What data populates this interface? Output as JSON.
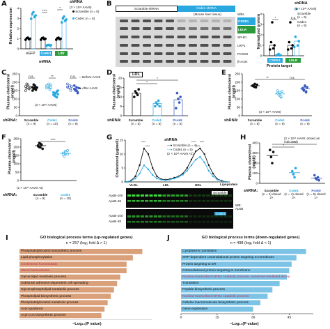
{
  "panels": {
    "A": {
      "label": "A",
      "title": "shRNA",
      "dose": "(3 × 10¹¹ AAV8)",
      "legend": [
        {
          "name": "Scramble",
          "n": "(n = 5)"
        },
        {
          "name": "Csde1",
          "n": "(n = 5)"
        }
      ],
      "ylabel": "Relative expression",
      "xlabel": "mRNA",
      "categories": [
        "eGFP",
        "Csde1",
        "Ldlr"
      ],
      "sig": [
        "****",
        "*"
      ],
      "yticks": [
        "0",
        "1",
        "2",
        "3",
        "4"
      ]
    },
    "B": {
      "label": "B",
      "header_left": "Scramble shRNA",
      "header_right": "Csde1 shRNA",
      "tissue": "(Mouse liver tissue)",
      "wb_label": "WBs",
      "bands": [
        "CSDE1",
        "LDLR",
        "SR-B1",
        "LRP1",
        "PCSK9",
        "β-Actin"
      ],
      "ylabel": "Normalized protein",
      "xlabel": "Protein target",
      "legend_title": "shRNA",
      "dose": "(3 × 10¹¹ AAV8)",
      "legend": [
        {
          "name": "Scramble",
          "n": "(n = 5)"
        },
        {
          "name": "Csde1",
          "n": "(n = 5)"
        }
      ],
      "sig": [
        "*",
        "n.s."
      ],
      "categories": [
        "CSDE1",
        "LDLR"
      ],
      "yticks": [
        "0",
        "1",
        "2",
        "3",
        "4"
      ]
    },
    "C": {
      "label": "C",
      "ylabel": "Plasma cholesterol (mg/dl)",
      "legend": [
        "Before AAV8",
        "After AAV8"
      ],
      "dose": "(3 × 10¹¹ AAV8)",
      "shrna_label": "shRNA:",
      "categories": [
        "Scramble",
        "Csde1",
        "Pcsk9"
      ],
      "n": [
        "(n = 9)",
        "(n = 10)",
        "(n = 9)"
      ],
      "sig": [
        "n.s.",
        "**",
        "n.s."
      ],
      "yticks": [
        "0",
        "50",
        "100",
        "150",
        "200",
        "250"
      ]
    },
    "D": {
      "label": "D",
      "box": "LDL",
      "ylabel": "Plasma cholesterol (mg/dl)",
      "shrna_label": "shRNA:",
      "categories": [
        "Scramble",
        "Csde1",
        "Pcsk9"
      ],
      "n": [
        "(n = 5)",
        "(n = 5)",
        "(n = 5)"
      ],
      "sig": [
        "*",
        "*"
      ],
      "yticks": [
        "0",
        "5",
        "10",
        "15",
        "20"
      ]
    },
    "E": {
      "label": "E",
      "ylabel": "Plasma cholesterol (mg/dl)",
      "dose": "(3 × 10¹¹ AAV8)",
      "shrna_label": "shRNA:",
      "categories": [
        "Scramble",
        "Csde1",
        "Pcsk9"
      ],
      "n": [
        "(n = 8)",
        "(n = 9)",
        "(n = 9)"
      ],
      "sig": [
        "**",
        "n.s."
      ],
      "yticks": [
        "0",
        "50",
        "100",
        "150",
        "200",
        "250"
      ]
    },
    "F": {
      "label": "F",
      "ylabel": "Plasma cholesterol (mg/dl)",
      "dose": "(2 × 10¹¹ AAV8 ×2)",
      "shrna_label": "shRNA:",
      "categories": [
        "Scramble",
        "Csde1"
      ],
      "n": [
        "(n = 9)",
        "(n = 10)"
      ],
      "sig": [
        "****"
      ],
      "yticks": [
        "0",
        "50",
        "100",
        "150",
        "200",
        "250"
      ]
    },
    "G": {
      "label": "G",
      "title": "shRNA",
      "legend": [
        {
          "name": "Scramble",
          "n": "(n = 4)"
        },
        {
          "name": "Csde1",
          "n": "(n = 5)"
        }
      ],
      "dose": "(2 × 10¹¹ AAV8 ×2)",
      "ylabel": "Cholesterol (µg/well)",
      "xlabel": "Lipoprotein",
      "fractions": [
        "VLDL",
        "LDL",
        "HDL"
      ],
      "sig": [
        "****",
        "****",
        "****",
        "****",
        "****"
      ],
      "yticks": [
        "0",
        "5",
        "10",
        "15"
      ],
      "blot_labels": [
        "ApoB-100",
        "ApoB-48",
        "ApoB-100",
        "ApoB-48"
      ],
      "blot_tags": [
        "Scramble",
        "Csde1"
      ],
      "wb_label": "WB: ApoB"
    },
    "H": {
      "label": "H",
      "ylabel": "Plasma cholesterol (mg/dl)",
      "dose": "(2 × 10¹¹ AAV8; dosed as indicated)",
      "shrna_label": "shRNA:",
      "categories": [
        "Scramble",
        "Csde1",
        "Pcsk9"
      ],
      "n": [
        "(n = 4) dosed 2×",
        "(n = 4) dosed 2×",
        "(n = 5) dosed 1×"
      ],
      "sig": [
        "*",
        "**"
      ],
      "yticks": [
        "0",
        "100",
        "200",
        "300",
        "400"
      ]
    },
    "I": {
      "label": "I",
      "title": "GO biological process terms (up-regulated genes)",
      "subtitle": "n = 257 (log₂ fold Δ > 1)",
      "xlabel": "−Log₁₀(P value)",
      "xticks": [
        "0",
        "1",
        "2",
        "3",
        "4"
      ],
      "terms": [
        {
          "name": "Phosphatidylinositol biosynthetic process",
          "value": 3.9,
          "highlight": false
        },
        {
          "name": "Lipid phosphorylation",
          "value": 3.6,
          "highlight": false
        },
        {
          "name": "Cholesterol homeostasis",
          "value": 3.4,
          "highlight": true
        },
        {
          "name": "Sterol homeostasis",
          "value": 3.4,
          "highlight": true
        },
        {
          "name": "Glycerolipid metabolic process",
          "value": 3.2,
          "highlight": false
        },
        {
          "name": "Substrate adhesion-dependent cell spreading",
          "value": 3.1,
          "highlight": false
        },
        {
          "name": "Glycerophospholipid metabolic process",
          "value": 3.0,
          "highlight": false
        },
        {
          "name": "Phospholipid biosynthetic process",
          "value": 2.9,
          "highlight": false
        },
        {
          "name": "Phosphatidylinositol metabolic process",
          "value": 2.8,
          "highlight": false
        },
        {
          "name": "Axon guidance",
          "value": 2.7,
          "highlight": false
        },
        {
          "name": "Acyl-CoA biosynthetic process",
          "value": 2.6,
          "highlight": false
        }
      ]
    },
    "J": {
      "label": "J",
      "title": "GO biological process terms (down-regulated genes)",
      "subtitle": "n = 498 (log₂ fold Δ < 1)",
      "xlabel": "−Log₁₀(P value)",
      "xticks": [
        "0",
        "15",
        "30",
        "45"
      ],
      "terms": [
        {
          "name": "Cytoplasmic translation",
          "value": 52,
          "highlight": false
        },
        {
          "name": "SRP-dependent cotranslational protein targeting to membrane",
          "value": 48,
          "highlight": false
        },
        {
          "name": "Protein targeting to ER",
          "value": 46,
          "highlight": false
        },
        {
          "name": "Cotranslational protein targeting to membrane",
          "value": 45,
          "highlight": false
        },
        {
          "name": "Nuclear-transcribed mRNA catabolic process, nonsense-mediated decay",
          "value": 44,
          "highlight": true
        },
        {
          "name": "Translation",
          "value": 41,
          "highlight": false
        },
        {
          "name": "Peptide biosynthetic process",
          "value": 38,
          "highlight": false
        },
        {
          "name": "Nuclear-transcribed mRNA catabolic process",
          "value": 36,
          "highlight": true
        },
        {
          "name": "Cellular macromolecule biosynthetic process",
          "value": 33,
          "highlight": false
        },
        {
          "name": "Gene expression",
          "value": 30,
          "highlight": false
        }
      ]
    }
  },
  "colors": {
    "scramble": "#111111",
    "csde1": "#29a8e0",
    "pcsk9": "#3a5bbf",
    "go_up": "#d9a07a",
    "go_down": "#7cc3e6",
    "highlight_text": "#c4305a",
    "blot_bg": "#0a0a0a",
    "blot_band": "#3ddc3d"
  }
}
